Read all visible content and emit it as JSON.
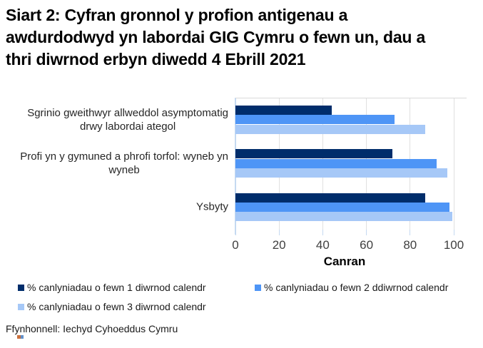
{
  "source": "Ffynhonnell: Iechyd Cyhoeddus Cymru",
  "chart_data": {
    "type": "bar",
    "orientation": "horizontal",
    "title": "Siart 2: Cyfran gronnol y profion antigenau a\nawdurdodwyd yn labordai GIG Cymru o fewn un, dau a\nthri diwrnod erbyn diwedd 4 Ebrill 2021",
    "categories": [
      "Sgrinio gweithwyr allweddol asymptomatig\ndrwy labordai ategol",
      "Profi yn y gymuned a phrofi torfol: wyneb yn\nwyneb",
      "Ysbyty"
    ],
    "series": [
      {
        "name": "% canlyniadau o fewn 1 diwrnod calendr",
        "color": "#002d6b",
        "values": [
          44,
          72,
          87
        ]
      },
      {
        "name": "% canlyniadau o fewn 2 ddiwrnod calendr",
        "color": "#4e95f6",
        "values": [
          73,
          92,
          98
        ]
      },
      {
        "name": "% canlyniadau o fewn 3 diwrnod calendr",
        "color": "#a6c8f7",
        "values": [
          87,
          97,
          99.5
        ]
      }
    ],
    "xlabel": "Canran",
    "xlim": [
      0,
      100
    ],
    "xticks": [
      0,
      20,
      40,
      60,
      80,
      100
    ],
    "grid": "vertical gridlines",
    "legend_position": "bottom, two columns"
  },
  "style": {
    "axis_line_color": "#c5d9f1",
    "gridline_color": "#e0e0e0",
    "tick_label_color": "#404040",
    "background": "#ffffff"
  }
}
